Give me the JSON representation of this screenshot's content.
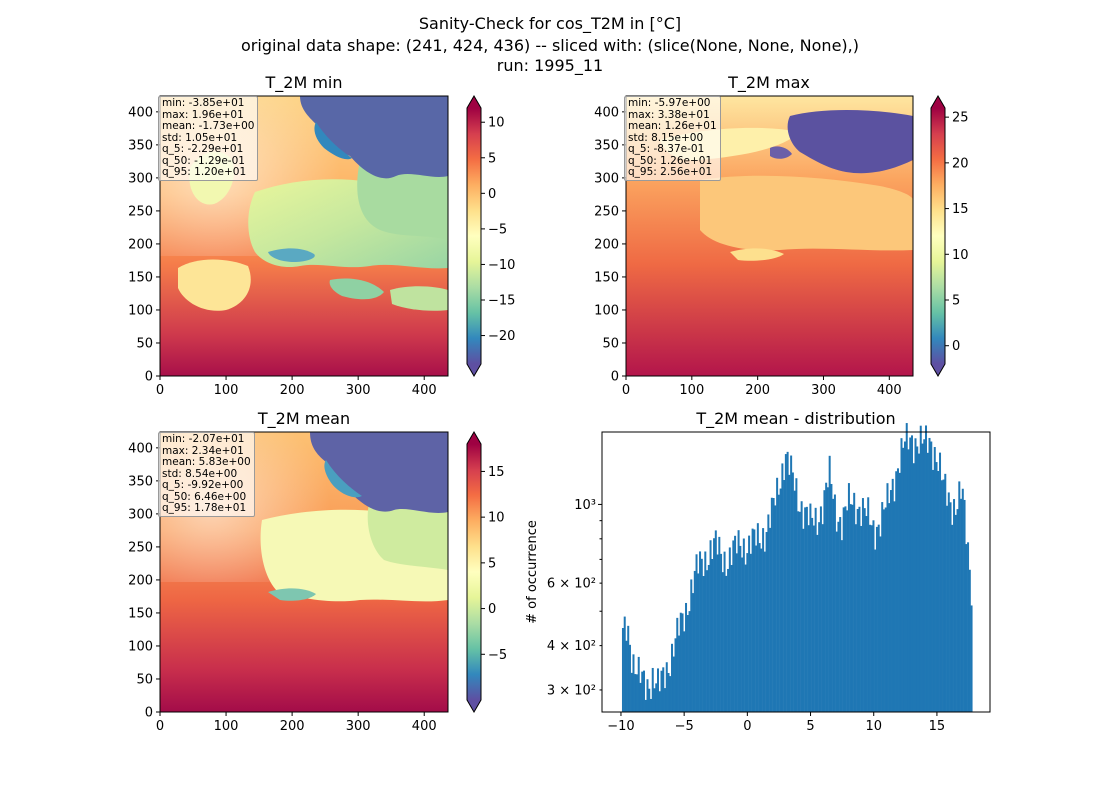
{
  "figure": {
    "title_lines": [
      "Sanity-Check for cos_T2M in [°C]",
      "original data shape: (241, 424, 436) -- sliced with: (slice(None, None, None),)",
      "run: 1995_11"
    ]
  },
  "chart_data": [
    {
      "type": "heatmap",
      "title": "T_2M min",
      "colormap": "Spectral_r",
      "x_ticks": [
        0,
        100,
        200,
        300,
        400
      ],
      "y_ticks": [
        0,
        50,
        100,
        150,
        200,
        250,
        300,
        350,
        400
      ],
      "xlim": [
        0,
        436
      ],
      "ylim": [
        0,
        424
      ],
      "colorbar": {
        "range": [
          -24,
          12
        ],
        "ticks": [
          10,
          5,
          0,
          -5,
          -10,
          -15,
          -20
        ],
        "tick_labels": [
          "10",
          "5",
          "0",
          "−5",
          "−10",
          "−15",
          "−20"
        ],
        "extend": "both"
      },
      "stats": [
        "min: -3.85e+01",
        "max: 1.96e+01",
        "mean: -1.73e+00",
        "std: 1.05e+01",
        "q_5: -2.29e+01",
        "q_50: -1.29e-01",
        "q_95: 1.20e+01"
      ]
    },
    {
      "type": "heatmap",
      "title": "T_2M max",
      "colormap": "Spectral_r",
      "x_ticks": [
        0,
        100,
        200,
        300,
        400
      ],
      "y_ticks": [
        0,
        50,
        100,
        150,
        200,
        250,
        300,
        350,
        400
      ],
      "xlim": [
        0,
        436
      ],
      "ylim": [
        0,
        424
      ],
      "colorbar": {
        "range": [
          -2,
          26
        ],
        "ticks": [
          25,
          20,
          15,
          10,
          5,
          0
        ],
        "tick_labels": [
          "25",
          "20",
          "15",
          "10",
          "5",
          "0"
        ],
        "extend": "both"
      },
      "stats": [
        "min: -5.97e+00",
        "max: 3.38e+01",
        "mean: 1.26e+01",
        "std: 8.15e+00",
        "q_5: -8.37e-01",
        "q_50: 1.26e+01",
        "q_95: 2.56e+01"
      ]
    },
    {
      "type": "heatmap",
      "title": "T_2M mean",
      "colormap": "Spectral_r",
      "x_ticks": [
        0,
        100,
        200,
        300,
        400
      ],
      "y_ticks": [
        0,
        50,
        100,
        150,
        200,
        250,
        300,
        350,
        400
      ],
      "xlim": [
        0,
        436
      ],
      "ylim": [
        0,
        424
      ],
      "colorbar": {
        "range": [
          -10,
          18
        ],
        "ticks": [
          15,
          10,
          5,
          0,
          -5
        ],
        "tick_labels": [
          "15",
          "10",
          "5",
          "0",
          "−5"
        ],
        "extend": "both"
      },
      "stats": [
        "min: -2.07e+01",
        "max: 2.34e+01",
        "mean: 5.83e+00",
        "std: 8.54e+00",
        "q_5: -9.92e+00",
        "q_50: 6.46e+00",
        "q_95: 1.78e+01"
      ]
    },
    {
      "type": "bar",
      "title": "T_2M mean - distribution",
      "ylabel": "# of occurrence",
      "yscale": "log",
      "color": "#1f77b4",
      "xlim": [
        -11.5,
        19.2
      ],
      "ylim": [
        260,
        1600
      ],
      "x_ticks": [
        -10,
        -5,
        0,
        5,
        10,
        15
      ],
      "x_tick_labels": [
        "−10",
        "−5",
        "0",
        "5",
        "10",
        "15"
      ],
      "y_ticks_major": [
        1000
      ],
      "y_tick_labels_major": [
        "10³"
      ],
      "y_ticks_minor": [
        300,
        400,
        600
      ],
      "y_tick_labels_minor": [
        "3 × 10²",
        "4 × 10²",
        "6 × 10²"
      ],
      "bin_range": [
        -9.92,
        17.8
      ],
      "profile_x": [
        -9.9,
        -9.5,
        -9.0,
        -8.5,
        -8.0,
        -7.5,
        -7.0,
        -6.5,
        -6.0,
        -5.5,
        -5.0,
        -4.5,
        -4.0,
        -3.5,
        -3.0,
        -2.5,
        -2.0,
        -1.5,
        -1.0,
        -0.5,
        0.0,
        0.5,
        1.0,
        1.5,
        2.0,
        2.5,
        3.0,
        3.5,
        4.0,
        4.5,
        5.0,
        5.5,
        6.0,
        6.5,
        7.0,
        7.5,
        8.0,
        8.5,
        9.0,
        9.5,
        10.0,
        10.5,
        11.0,
        11.5,
        12.0,
        12.5,
        13.0,
        13.5,
        14.0,
        14.5,
        15.0,
        15.5,
        16.0,
        16.5,
        17.0,
        17.3,
        17.6,
        17.8
      ],
      "profile_y": [
        420,
        460,
        360,
        320,
        310,
        330,
        300,
        340,
        380,
        430,
        490,
        570,
        650,
        700,
        740,
        760,
        720,
        700,
        740,
        790,
        760,
        780,
        820,
        850,
        950,
        1150,
        1400,
        1200,
        1050,
        970,
        880,
        910,
        1020,
        1200,
        960,
        900,
        1000,
        1020,
        980,
        920,
        860,
        900,
        980,
        1150,
        1330,
        1480,
        1550,
        1500,
        1470,
        1530,
        1360,
        1120,
        1050,
        980,
        1070,
        860,
        680,
        560
      ]
    }
  ]
}
